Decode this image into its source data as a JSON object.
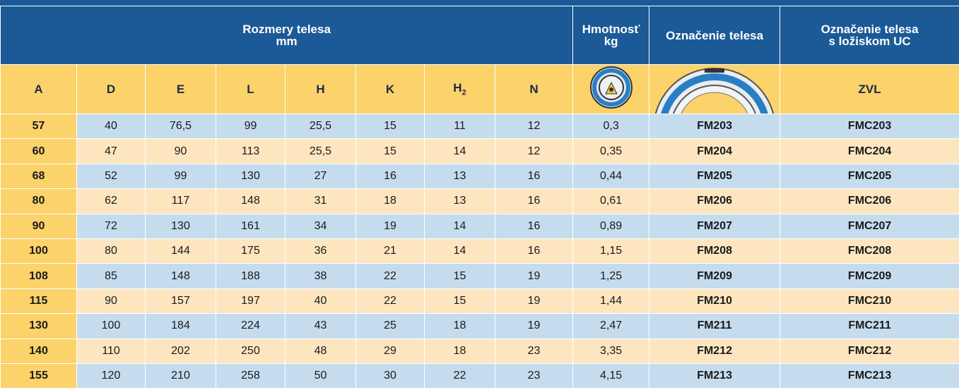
{
  "header": {
    "dimensions": {
      "title": "Rozmery telesa",
      "unit": "mm"
    },
    "weight": {
      "title": "Hmotnosť",
      "unit": "kg"
    },
    "designation": "Označenie telesa",
    "designation_uc": [
      "Označenie telesa",
      "s ložiskom UC"
    ]
  },
  "columns": [
    "A",
    "D",
    "E",
    "L",
    "H",
    "K",
    {
      "main": "H",
      "sub": "2"
    },
    "N"
  ],
  "brand": "ZVL",
  "rows": [
    [
      "57",
      "40",
      "76,5",
      "99",
      "25,5",
      "15",
      "11",
      "12",
      "0,3",
      "FM203",
      "FMC203"
    ],
    [
      "60",
      "47",
      "90",
      "113",
      "25,5",
      "15",
      "14",
      "12",
      "0,35",
      "FM204",
      "FMC204"
    ],
    [
      "68",
      "52",
      "99",
      "130",
      "27",
      "16",
      "13",
      "16",
      "0,44",
      "FM205",
      "FMC205"
    ],
    [
      "80",
      "62",
      "117",
      "148",
      "31",
      "18",
      "13",
      "16",
      "0,61",
      "FM206",
      "FMC206"
    ],
    [
      "90",
      "72",
      "130",
      "161",
      "34",
      "19",
      "14",
      "16",
      "0,89",
      "FM207",
      "FMC207"
    ],
    [
      "100",
      "80",
      "144",
      "175",
      "36",
      "21",
      "14",
      "16",
      "1,15",
      "FM208",
      "FMC208"
    ],
    [
      "108",
      "85",
      "148",
      "188",
      "38",
      "22",
      "15",
      "19",
      "1,25",
      "FM209",
      "FMC209"
    ],
    [
      "115",
      "90",
      "157",
      "197",
      "40",
      "22",
      "15",
      "19",
      "1,44",
      "FM210",
      "FMC210"
    ],
    [
      "130",
      "100",
      "184",
      "224",
      "43",
      "25",
      "18",
      "19",
      "2,47",
      "FM211",
      "FMC211"
    ],
    [
      "140",
      "110",
      "202",
      "250",
      "48",
      "29",
      "18",
      "23",
      "3,35",
      "FM212",
      "FMC212"
    ],
    [
      "155",
      "120",
      "210",
      "258",
      "50",
      "30",
      "22",
      "23",
      "4,15",
      "FM213",
      "FMC213"
    ]
  ]
}
